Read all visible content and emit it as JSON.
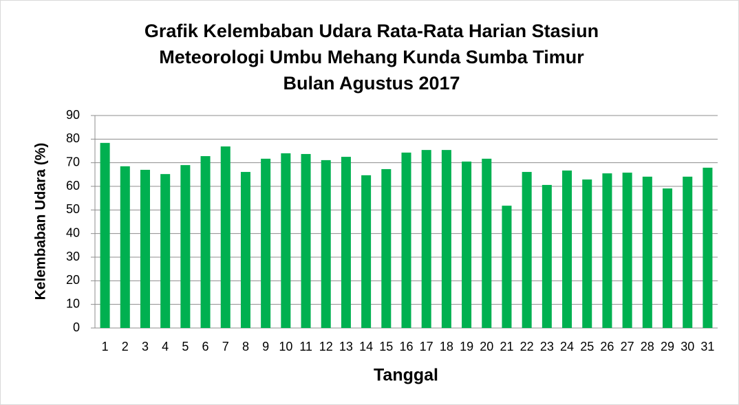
{
  "chart_data": {
    "type": "bar",
    "title": [
      "Grafik Kelembaban Udara Rata-Rata Harian Stasiun",
      "Meteorologi Umbu Mehang Kunda Sumba Timur",
      "Bulan Agustus 2017"
    ],
    "x_label": "Tanggal",
    "y_label": "Kelembaban Udara (%)",
    "categories": [
      "1",
      "2",
      "3",
      "4",
      "5",
      "6",
      "7",
      "8",
      "9",
      "10",
      "11",
      "12",
      "13",
      "14",
      "15",
      "16",
      "17",
      "18",
      "19",
      "20",
      "21",
      "22",
      "23",
      "24",
      "25",
      "26",
      "27",
      "28",
      "29",
      "30",
      "31"
    ],
    "values": [
      78.4,
      68.5,
      67,
      65.2,
      69,
      72.8,
      76.9,
      66.1,
      71.7,
      74,
      73.7,
      71.1,
      72.5,
      64.7,
      67.3,
      74.3,
      75.4,
      75.4,
      70.5,
      71.7,
      51.8,
      66.1,
      60.6,
      66.7,
      62.9,
      65.5,
      65.8,
      64.1,
      59.1,
      64.1,
      67.9
    ],
    "color": "#00b050",
    "ylim": [
      0,
      90
    ],
    "yticks": [
      0,
      10,
      20,
      30,
      40,
      50,
      60,
      70,
      80,
      90
    ],
    "grid": true
  }
}
